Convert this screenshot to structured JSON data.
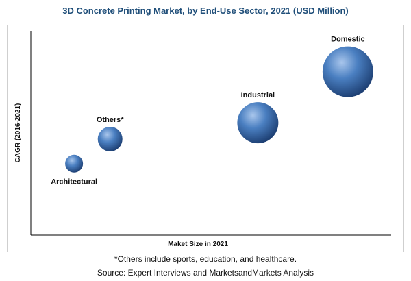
{
  "chart_data": {
    "type": "scatter",
    "title": "3D Concrete Printing Market, by End-Use Sector, 2021 (USD Million)",
    "xlabel": "Maket Size in 2021",
    "ylabel": "CAGR (2016-2021)",
    "xlim": [
      0,
      100
    ],
    "ylim": [
      0,
      100
    ],
    "grid": false,
    "points": [
      {
        "name": "Architectural",
        "x": 12,
        "y": 35,
        "size": 13
      },
      {
        "name": "Others*",
        "x": 22,
        "y": 47,
        "size": 18
      },
      {
        "name": "Industrial",
        "x": 63,
        "y": 55,
        "size": 30
      },
      {
        "name": "Domestic",
        "x": 88,
        "y": 80,
        "size": 37
      }
    ]
  },
  "footnote": "*Others include sports, education, and healthcare.",
  "source": "Source: Expert Interviews and MarketsandMarkets Analysis",
  "colors": {
    "bubble_light": "#a9c6ec",
    "bubble_mid": "#4a7fc1",
    "bubble_dark": "#1d3f73",
    "axis": "#000000"
  }
}
